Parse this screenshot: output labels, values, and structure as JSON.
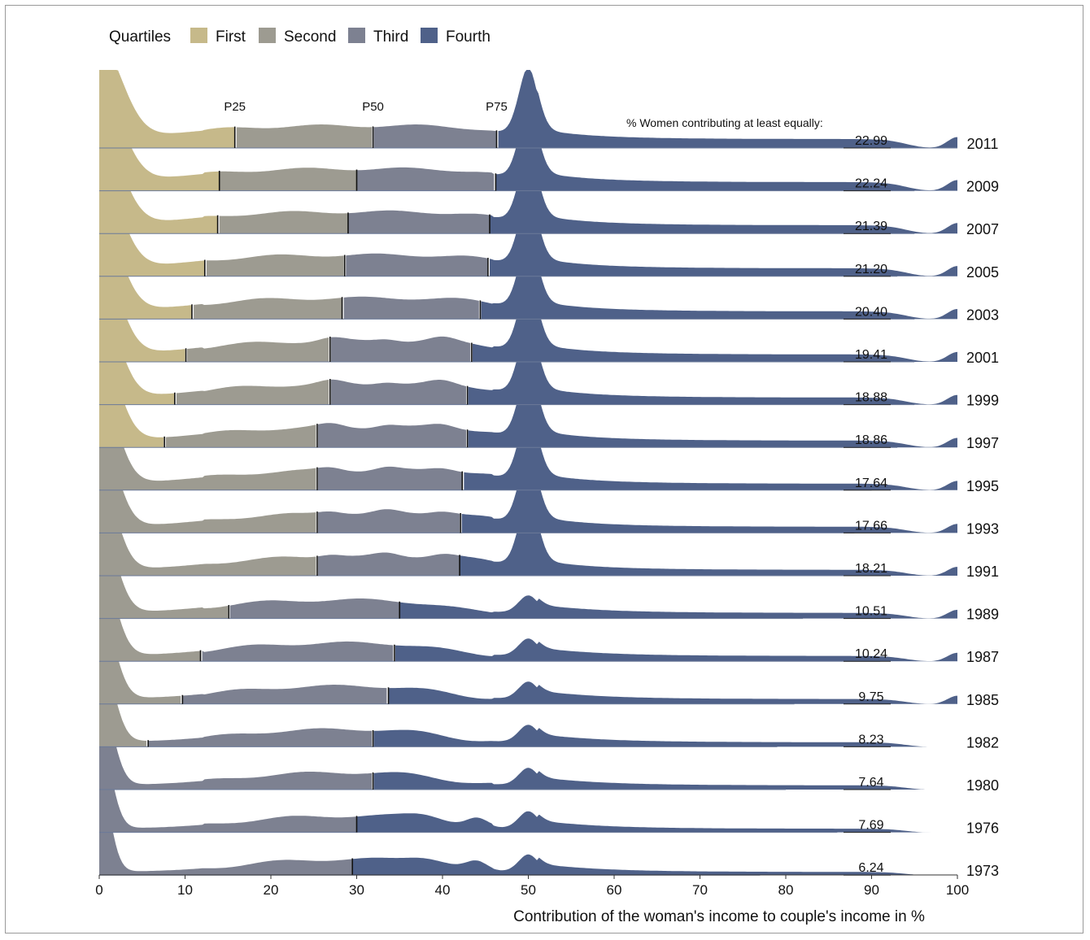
{
  "chart_data": {
    "type": "area",
    "legend": {
      "title": "Quartiles",
      "placement": "top-left",
      "entries": [
        {
          "name": "First",
          "color": "#c6b98a"
        },
        {
          "name": "Second",
          "color": "#9d9b91"
        },
        {
          "name": "Third",
          "color": "#7d8191"
        },
        {
          "name": "Fourth",
          "color": "#4f6189"
        }
      ]
    },
    "xlabel": "Contribution of the woman's income to couple's income in %",
    "xlim": [
      0,
      100
    ],
    "xticks": [
      0,
      10,
      20,
      30,
      40,
      50,
      60,
      70,
      80,
      90,
      100
    ],
    "percentile_labels": [
      "P25",
      "P50",
      "P75"
    ],
    "share_header": "% Women contributing at least equally:",
    "series": [
      {
        "year": "2011",
        "share": "22.99",
        "p25": 15.8,
        "p50": 31.9,
        "p75": 46.3,
        "end": 100
      },
      {
        "year": "2009",
        "share": "22.24",
        "p25": 14.0,
        "p50": 30.0,
        "p75": 46.2,
        "end": 95
      },
      {
        "year": "2007",
        "share": "21.39",
        "p25": 13.8,
        "p50": 29.0,
        "p75": 45.5,
        "end": 95
      },
      {
        "year": "2005",
        "share": "21.20",
        "p25": 12.3,
        "p50": 28.6,
        "p75": 45.3,
        "end": 93
      },
      {
        "year": "2003",
        "share": "20.40",
        "p25": 10.8,
        "p50": 28.3,
        "p75": 44.4,
        "end": 95
      },
      {
        "year": "2001",
        "share": "19.41",
        "p25": 10.1,
        "p50": 26.9,
        "p75": 43.4,
        "end": 95
      },
      {
        "year": "1999",
        "share": "18.88",
        "p25": 8.8,
        "p50": 26.9,
        "p75": 42.9,
        "end": 95
      },
      {
        "year": "1997",
        "share": "18.86",
        "p25": 7.6,
        "p50": 25.4,
        "p75": 42.9,
        "end": 93
      },
      {
        "year": "1995",
        "share": "17.64",
        "p25": 0,
        "p50": 25.4,
        "p75": 42.3,
        "end": 90
      },
      {
        "year": "1993",
        "share": "17.66",
        "p25": 0,
        "p50": 25.4,
        "p75": 42.1,
        "end": 88
      },
      {
        "year": "1991",
        "share": "18.21",
        "p25": 0,
        "p50": 25.4,
        "p75": 42.0,
        "end": 92
      },
      {
        "year": "1989",
        "share": "10.51",
        "p25": 0,
        "p50": 15.1,
        "p75": 35.0,
        "end": 82
      },
      {
        "year": "1987",
        "share": "10.24",
        "p25": 0,
        "p50": 11.8,
        "p75": 34.4,
        "end": 91
      },
      {
        "year": "1985",
        "share": "9.75",
        "p25": 0,
        "p50": 9.7,
        "p75": 33.7,
        "end": 81
      },
      {
        "year": "1982",
        "share": "8.23",
        "p25": 0,
        "p50": 5.7,
        "p75": 31.9,
        "end": 79
      },
      {
        "year": "1980",
        "share": "7.64",
        "p25": 0,
        "p50": 0,
        "p75": 31.9,
        "end": 80
      },
      {
        "year": "1976",
        "share": "7.69",
        "p25": 0,
        "p50": 0,
        "p75": 30.0,
        "end": 86
      },
      {
        "year": "1973",
        "share": "6.24",
        "p25": 0,
        "p50": 0,
        "p75": 29.5,
        "end": 77
      }
    ]
  }
}
